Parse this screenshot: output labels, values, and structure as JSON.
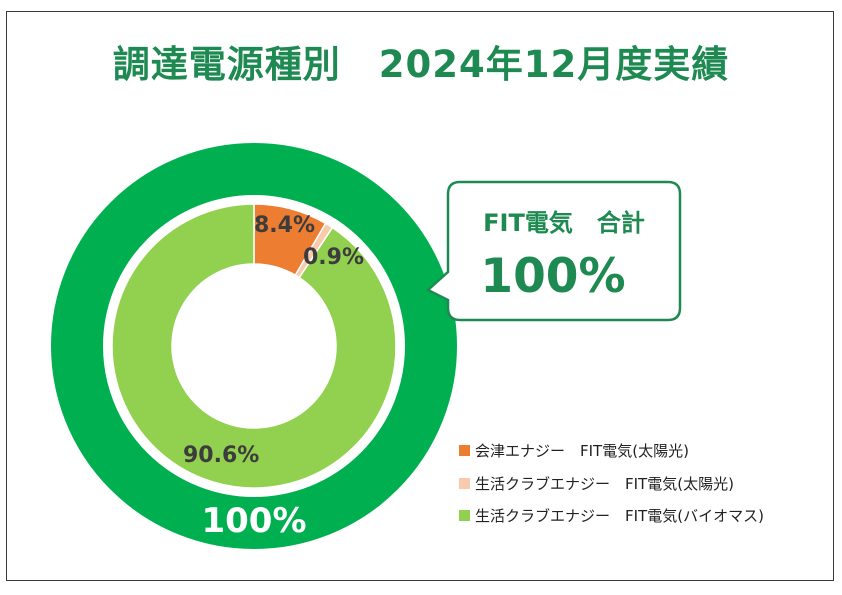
{
  "title": "調達電源種別　2024年12月度実績",
  "callout": {
    "title": "FIT電気　合計",
    "value": "100%"
  },
  "outer_label": "100%",
  "colors": {
    "outer_ring": "#00b050",
    "title": "#1e8a52"
  },
  "chart_data": {
    "type": "donut",
    "title": "調達電源種別　2024年12月度実績",
    "outer_ring": {
      "series": [
        {
          "name": "FIT電気 合計",
          "value": 100,
          "label": "100%",
          "color": "#00b050"
        }
      ]
    },
    "inner_ring": {
      "series": [
        {
          "name": "会津エナジー　FIT電気(太陽光)",
          "value": 8.4,
          "label": "8.4%",
          "color": "#ed7d31"
        },
        {
          "name": "生活クラブエナジー　FIT電気(太陽光)",
          "value": 0.9,
          "label": "0.9%",
          "color": "#f8cbad"
        },
        {
          "name": "生活クラブエナジー　FIT電気(バイオマス)",
          "value": 90.6,
          "label": "90.6%",
          "color": "#92d050"
        }
      ]
    },
    "legend_position": "bottom-right"
  }
}
